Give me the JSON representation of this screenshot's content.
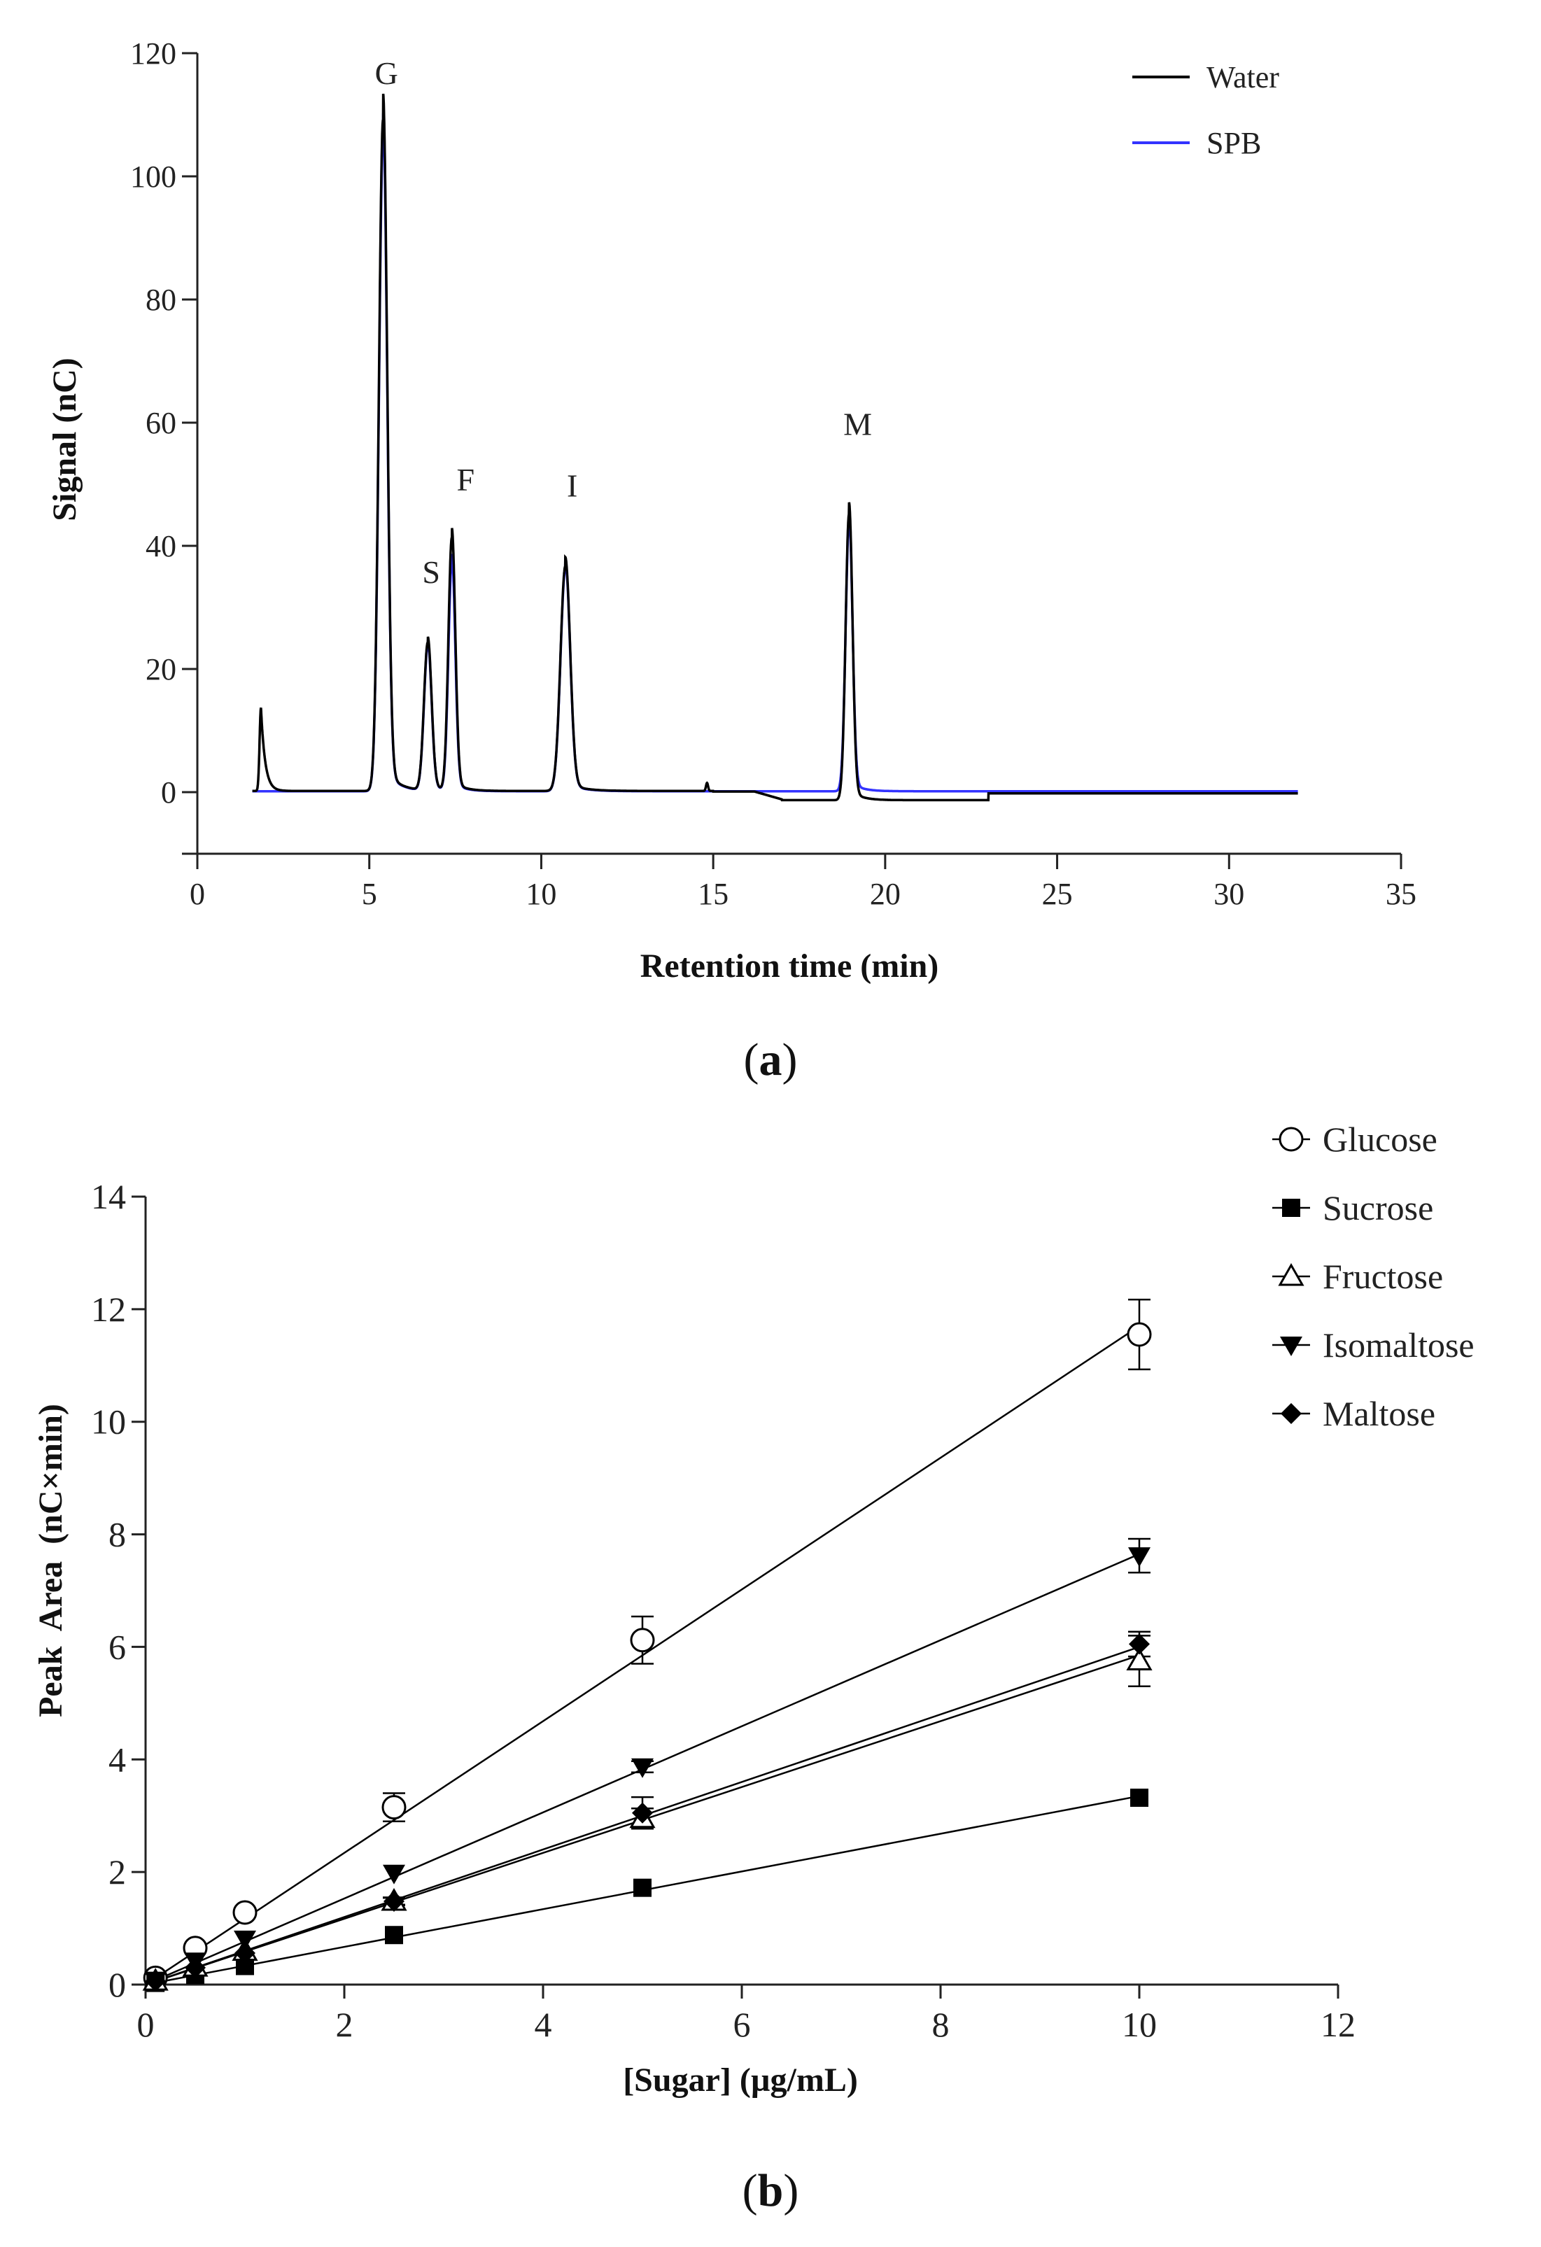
{
  "chart_data": [
    {
      "panel_label": "a",
      "type": "line",
      "title": "",
      "xlabel": "Retention time (min)",
      "ylabel": "Signal (nC)",
      "xlim": [
        0,
        35
      ],
      "ylim": [
        -10,
        120
      ],
      "xticks": [
        0,
        5,
        10,
        15,
        20,
        25,
        30,
        35
      ],
      "yticks": [
        0,
        20,
        40,
        60,
        80,
        100,
        120
      ],
      "legend": {
        "position": "top-right",
        "entries": [
          {
            "name": "Water",
            "color": "#000000"
          },
          {
            "name": "SPB",
            "color": "#3333ff"
          }
        ]
      },
      "peaks": [
        {
          "label": "G",
          "x": 5.4,
          "water": 109,
          "spb": 106,
          "width": 0.12
        },
        {
          "label": "S",
          "x": 6.7,
          "water": 24,
          "spb": 23.5,
          "width": 0.11
        },
        {
          "label": "F",
          "x": 7.4,
          "water": 41,
          "spb": 37,
          "width": 0.1
        },
        {
          "label": "I",
          "x": 10.7,
          "water": 36.5,
          "spb": 36,
          "width": 0.14
        },
        {
          "label": "M",
          "x": 18.95,
          "water": 46.5,
          "spb": 43.5,
          "width": 0.1
        }
      ],
      "annotations": [
        {
          "text": "G",
          "x": 5.5,
          "y": 115
        },
        {
          "text": "S",
          "x": 6.8,
          "y": 34
        },
        {
          "text": "F",
          "x": 7.8,
          "y": 49
        },
        {
          "text": "I",
          "x": 10.9,
          "y": 48
        },
        {
          "text": "M",
          "x": 19.2,
          "y": 58
        }
      ],
      "series": [
        {
          "name": "Water",
          "color": "#000000",
          "x_range": [
            1.6,
            32
          ],
          "extra_peak": {
            "x": 1.85,
            "y": 13.5
          }
        },
        {
          "name": "SPB",
          "color": "#3333ff",
          "x_range": [
            1.6,
            32
          ]
        }
      ]
    },
    {
      "panel_label": "b",
      "type": "scatter",
      "title": "",
      "xlabel": "[Sugar] (µg/mL)",
      "ylabel": "Peak  Area  (nC×min)",
      "xlim": [
        0,
        12
      ],
      "ylim": [
        0,
        14
      ],
      "xticks": [
        0,
        2,
        4,
        6,
        8,
        10,
        12
      ],
      "yticks": [
        0,
        2,
        4,
        6,
        8,
        10,
        12,
        14
      ],
      "legend": {
        "position": "top-right"
      },
      "x": [
        0.1,
        0.5,
        1,
        2.5,
        5,
        10
      ],
      "series": [
        {
          "name": "Glucose",
          "marker": "open-circle",
          "values": [
            0.12,
            0.65,
            1.28,
            3.15,
            6.12,
            11.55
          ],
          "errors": [
            0,
            0.05,
            0.06,
            0.25,
            0.42,
            0.62
          ],
          "fit": [
            0,
            1.17
          ]
        },
        {
          "name": "Sucrose",
          "marker": "filled-square",
          "values": [
            0.03,
            0.17,
            0.33,
            0.88,
            1.72,
            3.32
          ],
          "errors": [
            0,
            0,
            0,
            0,
            0,
            0
          ],
          "fit": [
            0,
            0.335
          ]
        },
        {
          "name": "Fructose",
          "marker": "open-triangle",
          "values": [
            0.06,
            0.31,
            0.59,
            1.48,
            2.95,
            5.75
          ],
          "errors": [
            0,
            0,
            0,
            0.07,
            0.18,
            0.45
          ],
          "fit": [
            0,
            0.585
          ]
        },
        {
          "name": "Isomaltose",
          "marker": "filled-triangle-down",
          "values": [
            0.08,
            0.42,
            0.81,
            1.98,
            3.87,
            7.62
          ],
          "errors": [
            0,
            0,
            0,
            0,
            0.1,
            0.3
          ],
          "fit": [
            0,
            0.765
          ]
        },
        {
          "name": "Maltose",
          "marker": "filled-diamond",
          "values": [
            0.06,
            0.3,
            0.56,
            1.48,
            3.05,
            6.05
          ],
          "errors": [
            0,
            0,
            0,
            0.06,
            0.28,
            0.22
          ],
          "fit": [
            0,
            0.6
          ]
        }
      ]
    }
  ]
}
